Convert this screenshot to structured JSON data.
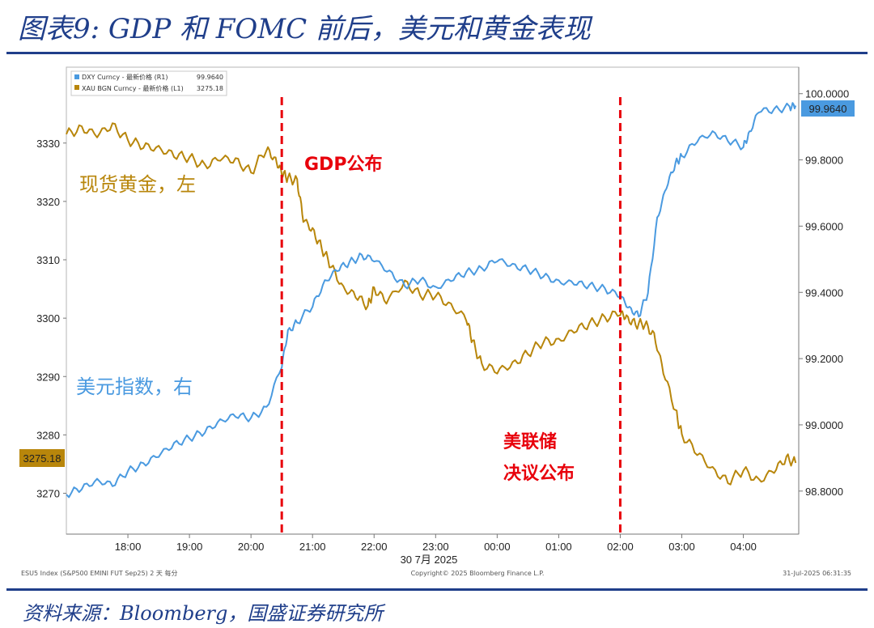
{
  "header": {
    "title": "图表9:  GDP 和 FOMC 前后，美元和黄金表现"
  },
  "footer": {
    "source": "资料来源：Bloomberg，国盛证券研究所"
  },
  "annotations": {
    "gdp": "GDP公布",
    "fomc_line1": "美联储",
    "fomc_line2": "决议公布",
    "gold_label": "现货黄金，左",
    "dxy_label": "美元指数，右"
  },
  "bloomberg": {
    "footer_left": "ESU5 Index (S&P500 EMINI FUT  Sep25) 2 天  每分",
    "footer_mid": "Copyright© 2025 Bloomberg Finance L.P.",
    "footer_right": "31-Jul-2025 06:31:35"
  },
  "colors": {
    "gold": "#b8860b",
    "dxy": "#4a9ae0",
    "event_line": "#e8000b",
    "title": "#1f3e8a"
  },
  "chart_data": {
    "type": "line",
    "title": "",
    "xlabel": "30 7月 2025",
    "x_ticks": [
      "18:00",
      "19:00",
      "20:00",
      "21:00",
      "22:00",
      "23:00",
      "00:00",
      "01:00",
      "02:00",
      "03:00",
      "04:00"
    ],
    "x_range_hours": [
      17.0,
      28.9
    ],
    "left_axis": {
      "ticks": [
        3270,
        3280,
        3290,
        3300,
        3310,
        3320,
        3330
      ],
      "range": [
        3263,
        3343
      ]
    },
    "right_axis": {
      "ticks": [
        "98.8000",
        "99.0000",
        "99.2000",
        "99.4000",
        "99.6000",
        "99.8000",
        "100.0000"
      ],
      "range": [
        98.67,
        100.08
      ]
    },
    "events": [
      {
        "name": "GDP公布",
        "x_hour": 20.5
      },
      {
        "name": "美联储决议公布",
        "x_hour": 26.0
      }
    ],
    "series": [
      {
        "name": "XAU BGN Curncy - 最新价格 (L1)",
        "axis": "left",
        "last_value": "3275.18",
        "points": [
          [
            17.0,
            3331.5
          ],
          [
            17.25,
            3332.5
          ],
          [
            17.5,
            3331.5
          ],
          [
            17.75,
            3333
          ],
          [
            18.0,
            3330.5
          ],
          [
            18.25,
            3329.5
          ],
          [
            18.5,
            3329
          ],
          [
            18.75,
            3328
          ],
          [
            19.0,
            3327.5
          ],
          [
            19.25,
            3326
          ],
          [
            19.5,
            3327.5
          ],
          [
            19.75,
            3327
          ],
          [
            20.0,
            3325
          ],
          [
            20.25,
            3329
          ],
          [
            20.4,
            3327
          ],
          [
            20.5,
            3325
          ],
          [
            20.6,
            3324
          ],
          [
            20.75,
            3323.5
          ],
          [
            20.85,
            3317
          ],
          [
            21.0,
            3315
          ],
          [
            21.15,
            3312
          ],
          [
            21.3,
            3309
          ],
          [
            21.5,
            3305
          ],
          [
            21.7,
            3304
          ],
          [
            21.9,
            3302
          ],
          [
            22.0,
            3305
          ],
          [
            22.2,
            3303
          ],
          [
            22.5,
            3306
          ],
          [
            22.75,
            3304
          ],
          [
            23.0,
            3304
          ],
          [
            23.25,
            3302
          ],
          [
            23.5,
            3300
          ],
          [
            23.6,
            3296
          ],
          [
            23.75,
            3292
          ],
          [
            24.0,
            3291
          ],
          [
            24.25,
            3292
          ],
          [
            24.5,
            3294
          ],
          [
            24.75,
            3296
          ],
          [
            25.0,
            3296
          ],
          [
            25.25,
            3298
          ],
          [
            25.5,
            3299
          ],
          [
            25.75,
            3300
          ],
          [
            26.0,
            3301
          ],
          [
            26.1,
            3300
          ],
          [
            26.25,
            3299
          ],
          [
            26.4,
            3299
          ],
          [
            26.55,
            3297
          ],
          [
            26.7,
            3291
          ],
          [
            26.9,
            3284
          ],
          [
            27.0,
            3280
          ],
          [
            27.25,
            3277
          ],
          [
            27.5,
            3274
          ],
          [
            27.75,
            3272
          ],
          [
            28.0,
            3274
          ],
          [
            28.25,
            3272
          ],
          [
            28.5,
            3274
          ],
          [
            28.7,
            3276
          ],
          [
            28.85,
            3275.2
          ]
        ]
      },
      {
        "name": "DXY Curncy - 最新价格 (R1)",
        "axis": "right",
        "last_value": "99.9640",
        "points": [
          [
            17.0,
            98.79
          ],
          [
            17.25,
            98.81
          ],
          [
            17.5,
            98.83
          ],
          [
            17.75,
            98.82
          ],
          [
            18.0,
            98.86
          ],
          [
            18.25,
            98.88
          ],
          [
            18.5,
            98.91
          ],
          [
            18.75,
            98.94
          ],
          [
            19.0,
            98.96
          ],
          [
            19.25,
            98.98
          ],
          [
            19.5,
            99.01
          ],
          [
            19.75,
            99.03
          ],
          [
            20.0,
            99.02
          ],
          [
            20.25,
            99.05
          ],
          [
            20.5,
            99.18
          ],
          [
            20.6,
            99.28
          ],
          [
            20.75,
            99.31
          ],
          [
            21.0,
            99.36
          ],
          [
            21.2,
            99.43
          ],
          [
            21.4,
            99.47
          ],
          [
            21.6,
            99.49
          ],
          [
            21.8,
            99.51
          ],
          [
            22.0,
            99.5
          ],
          [
            22.25,
            99.46
          ],
          [
            22.5,
            99.42
          ],
          [
            22.75,
            99.44
          ],
          [
            23.0,
            99.41
          ],
          [
            23.25,
            99.44
          ],
          [
            23.5,
            99.46
          ],
          [
            23.75,
            99.47
          ],
          [
            24.0,
            99.5
          ],
          [
            24.25,
            99.48
          ],
          [
            24.5,
            99.47
          ],
          [
            24.75,
            99.45
          ],
          [
            25.0,
            99.43
          ],
          [
            25.25,
            99.43
          ],
          [
            25.5,
            99.42
          ],
          [
            25.75,
            99.41
          ],
          [
            26.0,
            99.39
          ],
          [
            26.15,
            99.35
          ],
          [
            26.3,
            99.33
          ],
          [
            26.45,
            99.4
          ],
          [
            26.6,
            99.62
          ],
          [
            26.75,
            99.72
          ],
          [
            26.9,
            99.79
          ],
          [
            27.0,
            99.81
          ],
          [
            27.25,
            99.86
          ],
          [
            27.5,
            99.88
          ],
          [
            27.75,
            99.86
          ],
          [
            28.0,
            99.84
          ],
          [
            28.1,
            99.88
          ],
          [
            28.25,
            99.95
          ],
          [
            28.5,
            99.95
          ],
          [
            28.75,
            99.96
          ],
          [
            28.85,
            99.964
          ]
        ]
      }
    ]
  }
}
